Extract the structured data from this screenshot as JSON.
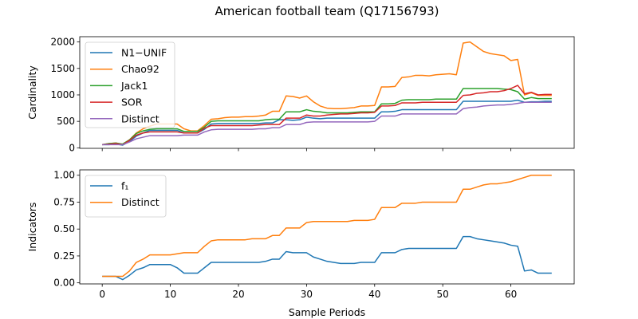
{
  "figure": {
    "title": "American football team (Q17156793)",
    "xlabel": "Sample Periods"
  },
  "chart_data": [
    {
      "type": "line",
      "ylabel": "Cardinality",
      "xlim": [
        -3.3,
        69.3
      ],
      "ylim": [
        -10,
        2100
      ],
      "xticks": [
        0,
        10,
        20,
        30,
        40,
        50,
        60
      ],
      "yticks": [
        0,
        500,
        1000,
        1500,
        2000
      ],
      "grid": false,
      "legend_placement": "top-left",
      "series": [
        {
          "name": "N1−UNIF",
          "color": "#1f77b4",
          "values": [
            60,
            60,
            70,
            50,
            120,
            220,
            280,
            330,
            330,
            330,
            330,
            330,
            280,
            280,
            280,
            350,
            450,
            460,
            460,
            460,
            460,
            460,
            460,
            460,
            470,
            470,
            530,
            530,
            520,
            530,
            580,
            560,
            550,
            560,
            560,
            560,
            560,
            560,
            560,
            560,
            560,
            680,
            680,
            690,
            720,
            720,
            720,
            720,
            720,
            720,
            720,
            720,
            720,
            880,
            880,
            880,
            880,
            880,
            880,
            880,
            880,
            900,
            860,
            870,
            870,
            880,
            880
          ]
        },
        {
          "name": "Chao92",
          "color": "#ff7f0e",
          "values": [
            60,
            80,
            90,
            70,
            150,
            280,
            360,
            410,
            450,
            450,
            450,
            450,
            360,
            320,
            320,
            420,
            540,
            550,
            570,
            580,
            580,
            590,
            590,
            600,
            620,
            690,
            690,
            980,
            970,
            940,
            980,
            870,
            790,
            750,
            740,
            740,
            750,
            760,
            790,
            790,
            800,
            1150,
            1150,
            1160,
            1330,
            1340,
            1370,
            1370,
            1360,
            1380,
            1390,
            1400,
            1380,
            1980,
            2000,
            1910,
            1820,
            1780,
            1760,
            1740,
            1650,
            1670,
            1000,
            1040,
            990,
            990,
            990
          ]
        },
        {
          "name": "Jack1",
          "color": "#2ca02c",
          "values": [
            60,
            80,
            90,
            70,
            150,
            270,
            320,
            350,
            360,
            360,
            360,
            360,
            310,
            310,
            310,
            390,
            500,
            510,
            510,
            510,
            510,
            510,
            510,
            510,
            530,
            540,
            540,
            680,
            680,
            680,
            720,
            690,
            680,
            660,
            660,
            660,
            660,
            670,
            680,
            680,
            680,
            830,
            830,
            840,
            900,
            910,
            910,
            910,
            910,
            920,
            920,
            920,
            920,
            1120,
            1120,
            1120,
            1120,
            1120,
            1120,
            1110,
            1100,
            1060,
            920,
            950,
            930,
            930,
            930
          ]
        },
        {
          "name": "SOR",
          "color": "#d62728",
          "values": [
            60,
            70,
            80,
            60,
            140,
            240,
            280,
            300,
            300,
            300,
            300,
            300,
            280,
            280,
            280,
            370,
            420,
            420,
            420,
            420,
            420,
            420,
            420,
            430,
            440,
            440,
            440,
            560,
            560,
            560,
            620,
            600,
            600,
            620,
            630,
            640,
            640,
            650,
            660,
            660,
            670,
            790,
            790,
            800,
            850,
            850,
            850,
            860,
            860,
            860,
            860,
            860,
            860,
            990,
            1000,
            1030,
            1040,
            1060,
            1060,
            1080,
            1120,
            1180,
            1020,
            1050,
            1000,
            1010,
            1010
          ]
        },
        {
          "name": "Distinct",
          "color": "#9467bd",
          "values": [
            60,
            60,
            60,
            60,
            110,
            170,
            200,
            230,
            230,
            230,
            230,
            230,
            240,
            240,
            240,
            300,
            340,
            350,
            350,
            350,
            350,
            350,
            350,
            360,
            360,
            380,
            380,
            440,
            440,
            440,
            480,
            490,
            490,
            490,
            490,
            490,
            490,
            490,
            490,
            490,
            500,
            600,
            600,
            600,
            640,
            640,
            640,
            640,
            640,
            640,
            640,
            640,
            640,
            740,
            760,
            770,
            790,
            800,
            810,
            810,
            820,
            840,
            860,
            860,
            860,
            860,
            860
          ]
        }
      ]
    },
    {
      "type": "line",
      "ylabel": "Indicators",
      "xlim": [
        -3.3,
        69.3
      ],
      "ylim": [
        -0.01,
        1.05
      ],
      "xticks": [
        0,
        10,
        20,
        30,
        40,
        50,
        60
      ],
      "xticklabels": [
        "0",
        "10",
        "20",
        "30",
        "40",
        "50",
        "60"
      ],
      "yticks": [
        0.0,
        0.25,
        0.5,
        0.75,
        1.0
      ],
      "yticklabels": [
        "0.00",
        "0.25",
        "0.50",
        "0.75",
        "1.00"
      ],
      "grid": false,
      "legend_placement": "top-left",
      "series": [
        {
          "name": "f₁",
          "color": "#1f77b4",
          "values": [
            0.06,
            0.06,
            0.06,
            0.03,
            0.07,
            0.12,
            0.14,
            0.17,
            0.17,
            0.17,
            0.17,
            0.14,
            0.09,
            0.09,
            0.09,
            0.14,
            0.19,
            0.19,
            0.19,
            0.19,
            0.19,
            0.19,
            0.19,
            0.19,
            0.2,
            0.22,
            0.22,
            0.29,
            0.28,
            0.28,
            0.28,
            0.24,
            0.22,
            0.2,
            0.19,
            0.18,
            0.18,
            0.18,
            0.19,
            0.19,
            0.19,
            0.28,
            0.28,
            0.28,
            0.31,
            0.32,
            0.32,
            0.32,
            0.32,
            0.32,
            0.32,
            0.32,
            0.32,
            0.43,
            0.43,
            0.41,
            0.4,
            0.39,
            0.38,
            0.37,
            0.35,
            0.34,
            0.11,
            0.12,
            0.09,
            0.09,
            0.09
          ]
        },
        {
          "name": "Distinct",
          "color": "#ff7f0e",
          "values": [
            0.06,
            0.06,
            0.06,
            0.06,
            0.11,
            0.19,
            0.22,
            0.26,
            0.26,
            0.26,
            0.26,
            0.27,
            0.28,
            0.28,
            0.28,
            0.34,
            0.39,
            0.4,
            0.4,
            0.4,
            0.4,
            0.4,
            0.41,
            0.41,
            0.41,
            0.44,
            0.44,
            0.51,
            0.51,
            0.51,
            0.56,
            0.57,
            0.57,
            0.57,
            0.57,
            0.57,
            0.57,
            0.58,
            0.58,
            0.58,
            0.59,
            0.7,
            0.7,
            0.7,
            0.74,
            0.74,
            0.74,
            0.75,
            0.75,
            0.75,
            0.75,
            0.75,
            0.75,
            0.87,
            0.87,
            0.89,
            0.91,
            0.92,
            0.92,
            0.93,
            0.94,
            0.96,
            0.98,
            1.0,
            1.0,
            1.0,
            1.0
          ]
        }
      ]
    }
  ]
}
